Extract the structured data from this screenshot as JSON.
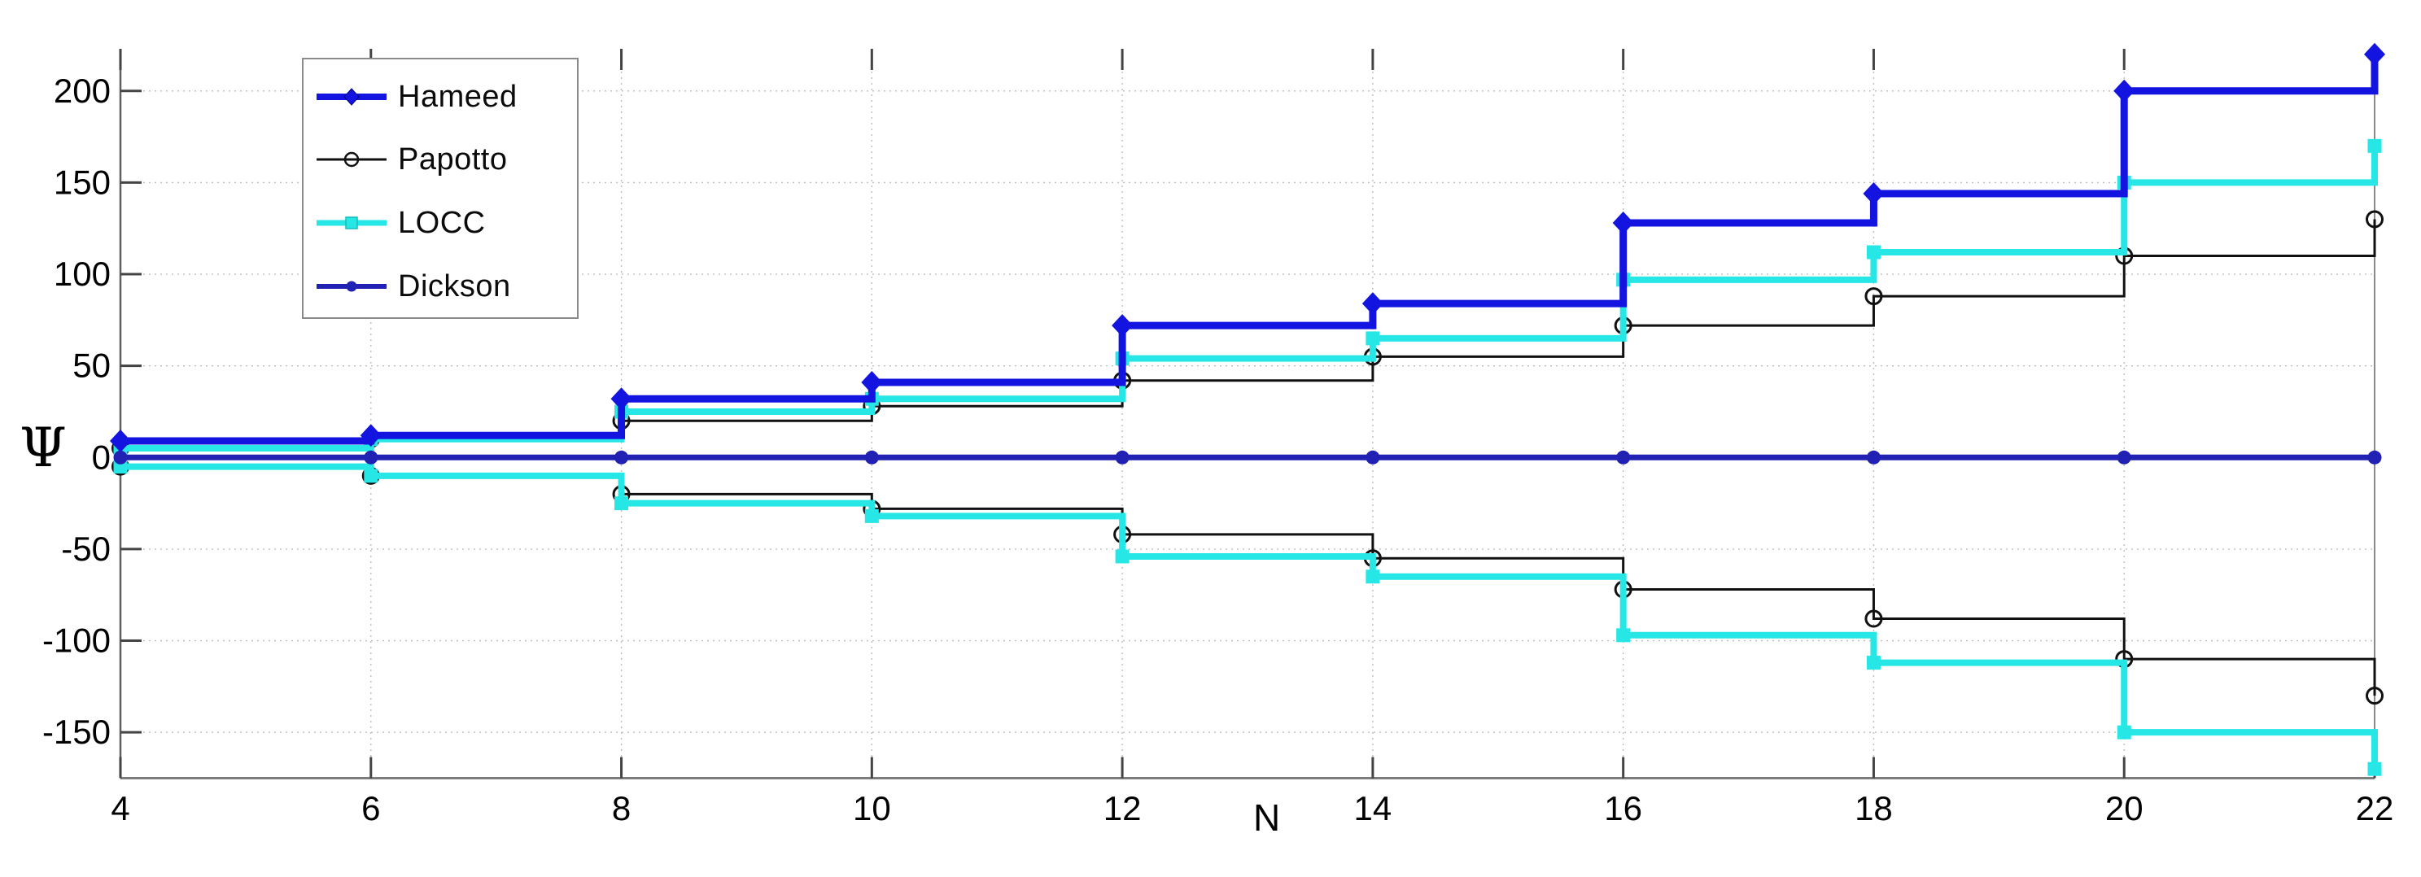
{
  "figure": {
    "kind": "matlab-style-stairs-plot",
    "background": "#ffffff",
    "axis_color": "#606060",
    "grid_color": "#bdbdbd",
    "tick_color": "#444444",
    "text_color": "#000000"
  },
  "axes": {
    "xlabel": "N",
    "ylabel": "Ψ"
  },
  "chart_data": {
    "type": "line",
    "subtype": "stairs",
    "title": "",
    "xlabel": "N",
    "ylabel": "Ψ",
    "x": [
      4,
      6,
      8,
      10,
      12,
      14,
      16,
      18,
      20,
      22
    ],
    "x_ticks": [
      4,
      6,
      8,
      10,
      12,
      14,
      16,
      18,
      20,
      22
    ],
    "y_ticks": [
      200,
      150,
      100,
      50,
      0,
      -50,
      -100,
      -150
    ],
    "xlim": [
      4,
      22
    ],
    "ylim": [
      -175,
      223
    ],
    "grid": true,
    "legend_position": "top-left",
    "series": [
      {
        "name": "Hameed",
        "color": "#1414e0",
        "marker": "diamond",
        "line_width": 9,
        "values": [
          9,
          12,
          32,
          41,
          72,
          84,
          128,
          144,
          200,
          220
        ]
      },
      {
        "name": "Papotto",
        "color": "#111111",
        "marker": "open-circle",
        "line_width": 3,
        "values": [
          5,
          10,
          20,
          28,
          42,
          55,
          72,
          88,
          110,
          130
        ],
        "values_neg": [
          -5,
          -10,
          -20,
          -28,
          -42,
          -55,
          -72,
          -88,
          -110,
          -130
        ]
      },
      {
        "name": "LOCC",
        "color": "#26e6e6",
        "marker": "square",
        "line_width": 8,
        "values": [
          5,
          10,
          25,
          32,
          54,
          65,
          97,
          112,
          150,
          170
        ],
        "values_neg": [
          -5,
          -10,
          -25,
          -32,
          -54,
          -65,
          -97,
          -112,
          -150,
          -170
        ]
      },
      {
        "name": "Dickson",
        "color": "#2121b4",
        "marker": "dot",
        "line_width": 7,
        "values": [
          0,
          0,
          0,
          0,
          0,
          0,
          0,
          0,
          0,
          0
        ]
      }
    ]
  }
}
